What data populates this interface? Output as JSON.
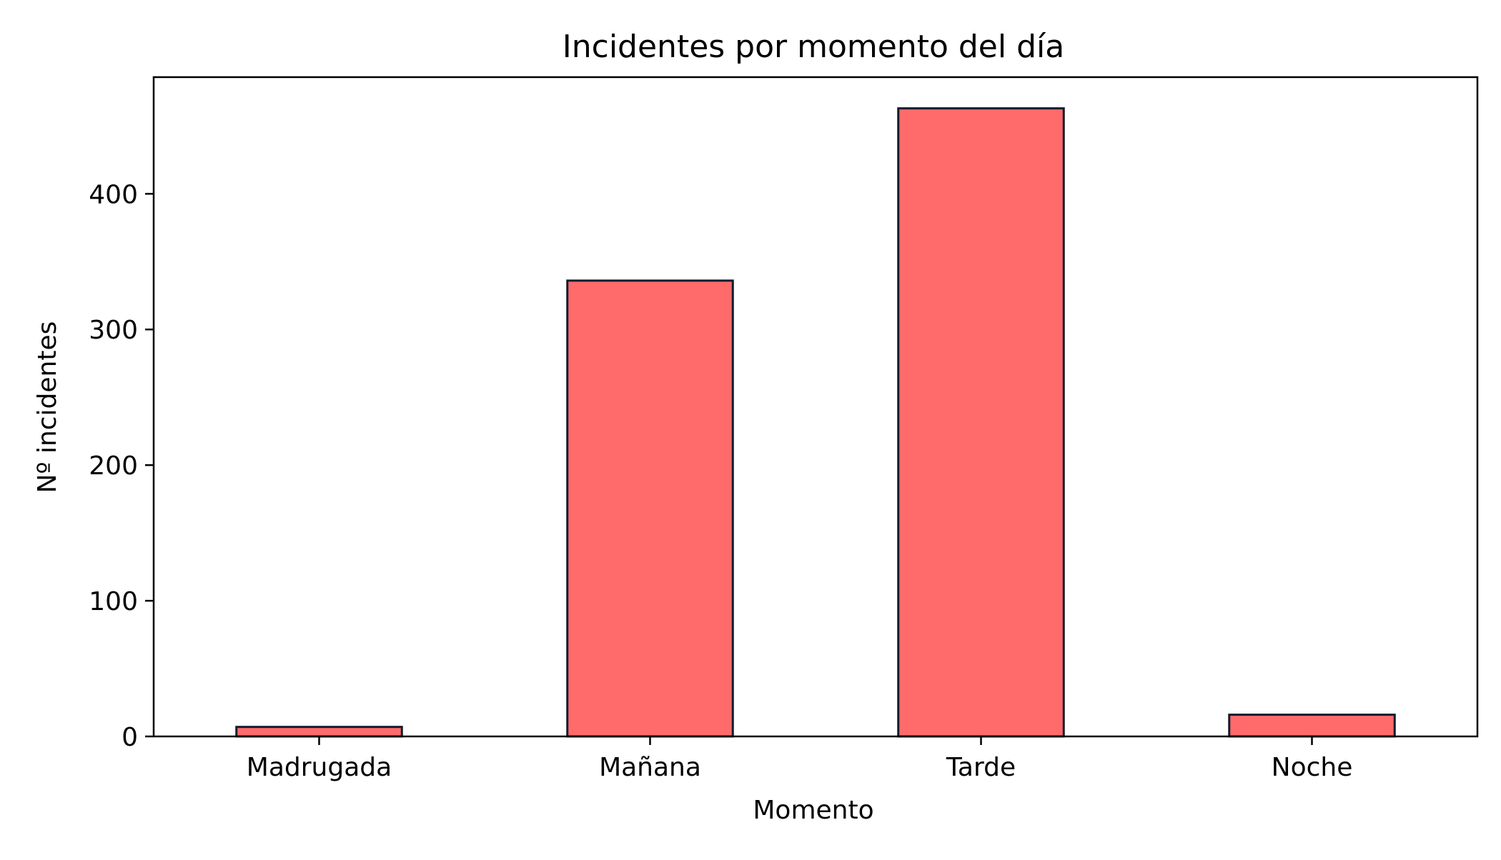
{
  "chart_data": {
    "type": "bar",
    "title": "Incidentes por momento del día",
    "xlabel": "Momento",
    "ylabel": "Nº incidentes",
    "categories": [
      "Madrugada",
      "Mañana",
      "Tarde",
      "Noche"
    ],
    "values": [
      7,
      336,
      463,
      16
    ],
    "ylim": [
      0,
      486
    ],
    "yticks": [
      0,
      100,
      200,
      300,
      400
    ],
    "grid": false,
    "legend": "none",
    "colors": {
      "bar_fill": "#ff6b6b",
      "bar_edge": "#0f1b2d",
      "axis": "#000000"
    }
  }
}
